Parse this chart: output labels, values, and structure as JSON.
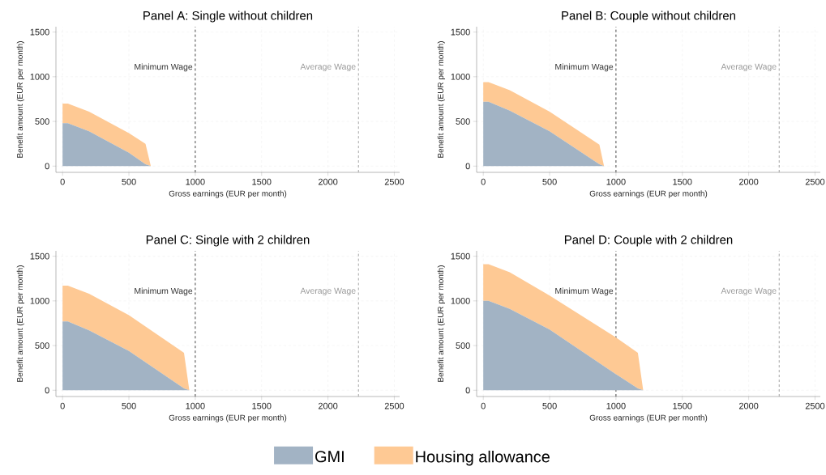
{
  "chart_data": [
    {
      "type": "area",
      "stacked": true,
      "title": "Panel A: Single without children",
      "xlabel": "Gross earnings (EUR per month)",
      "ylabel": "Benefit amount (EUR per month)",
      "x": [
        0,
        40,
        200,
        500,
        625,
        665
      ],
      "series": [
        {
          "color": "#a2b3c4",
          "values": [
            480,
            480,
            390,
            150,
            20,
            0
          ]
        },
        {
          "color": "#fec994",
          "values": [
            220,
            220,
            220,
            220,
            230,
            0
          ]
        }
      ],
      "xlim": [
        -50,
        2540
      ],
      "ylim": [
        -70,
        1560
      ],
      "xticks": [
        0,
        500,
        1000,
        1500,
        2000,
        2500
      ],
      "yticks": [
        0,
        500,
        1000,
        1500
      ],
      "grid": true,
      "ref_lines": [
        {
          "axis": "x",
          "value": 1000,
          "label": "Minimum Wage",
          "color": "#333333",
          "line_style": "dashed"
        },
        {
          "axis": "x",
          "value": 2230,
          "label": "Average Wage",
          "color": "#999999",
          "line_style": "dashed"
        }
      ]
    },
    {
      "type": "area",
      "stacked": true,
      "title": "Panel B: Couple without children",
      "xlabel": "Gross earnings (EUR per month)",
      "ylabel": "Benefit amount (EUR per month)",
      "x": [
        0,
        40,
        200,
        500,
        875,
        910
      ],
      "series": [
        {
          "color": "#a2b3c4",
          "values": [
            720,
            720,
            620,
            390,
            20,
            0
          ]
        },
        {
          "color": "#fec994",
          "values": [
            220,
            220,
            230,
            220,
            220,
            0
          ]
        }
      ],
      "xlim": [
        -50,
        2540
      ],
      "ylim": [
        -70,
        1560
      ],
      "xticks": [
        0,
        500,
        1000,
        1500,
        2000,
        2500
      ],
      "yticks": [
        0,
        500,
        1000,
        1500
      ],
      "grid": true,
      "ref_lines": [
        {
          "axis": "x",
          "value": 1000,
          "label": "Minimum Wage",
          "color": "#333333",
          "line_style": "dashed"
        },
        {
          "axis": "x",
          "value": 2230,
          "label": "Average Wage",
          "color": "#999999",
          "line_style": "dashed"
        }
      ]
    },
    {
      "type": "area",
      "stacked": true,
      "title": "Panel C: Single with 2 children",
      "xlabel": "Gross earnings (EUR per month)",
      "ylabel": "Benefit amount (EUR per month)",
      "x": [
        0,
        40,
        200,
        500,
        915,
        955
      ],
      "series": [
        {
          "name": "GMI",
          "color": "#a2b3c4",
          "values": [
            770,
            770,
            670,
            440,
            20,
            0
          ]
        },
        {
          "name": "Housing allowance",
          "color": "#fec994",
          "values": [
            400,
            400,
            410,
            400,
            400,
            0
          ]
        }
      ],
      "xlim": [
        -50,
        2540
      ],
      "ylim": [
        -70,
        1560
      ],
      "xticks": [
        0,
        500,
        1000,
        1500,
        2000,
        2500
      ],
      "yticks": [
        0,
        500,
        1000,
        1500
      ],
      "grid": true,
      "legend": "bottom",
      "ref_lines": [
        {
          "axis": "x",
          "value": 1000,
          "label": "Minimum Wage",
          "color": "#333333",
          "line_style": "dashed"
        },
        {
          "axis": "x",
          "value": 2230,
          "label": "Average Wage",
          "color": "#999999",
          "line_style": "dashed"
        }
      ]
    },
    {
      "type": "area",
      "stacked": true,
      "title": "Panel D: Couple with 2 children",
      "xlabel": "Gross earnings (EUR per month)",
      "ylabel": "Benefit amount (EUR per month)",
      "x": [
        0,
        40,
        200,
        500,
        1000,
        1165,
        1205
      ],
      "series": [
        {
          "color": "#a2b3c4",
          "values": [
            1000,
            1000,
            910,
            680,
            180,
            20,
            0
          ]
        },
        {
          "color": "#fec994",
          "values": [
            410,
            410,
            410,
            380,
            410,
            400,
            0
          ]
        }
      ],
      "xlim": [
        -50,
        2540
      ],
      "ylim": [
        -70,
        1560
      ],
      "xticks": [
        0,
        500,
        1000,
        1500,
        2000,
        2500
      ],
      "yticks": [
        0,
        500,
        1000,
        1500
      ],
      "grid": true,
      "ref_lines": [
        {
          "axis": "x",
          "value": 1000,
          "label": "Minimum Wage",
          "color": "#333333",
          "line_style": "dashed"
        },
        {
          "axis": "x",
          "value": 2230,
          "label": "Average Wage",
          "color": "#999999",
          "line_style": "dashed"
        }
      ]
    }
  ]
}
